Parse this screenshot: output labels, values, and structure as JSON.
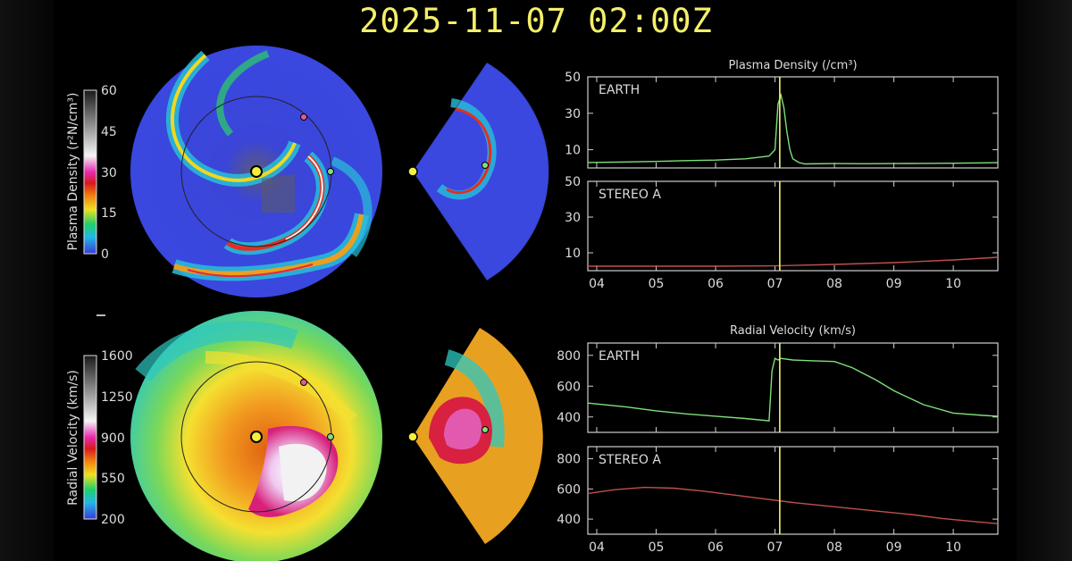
{
  "title": "2025-11-07  02:00Z",
  "colors": {
    "earth_line": "#7fe07a",
    "stereo_line": "#c0504d",
    "marker": "#f4ef6a",
    "frame": "#cfcfcf"
  },
  "colorbars": [
    {
      "label": "Plasma Density (r²N/cm³)",
      "ticks": [
        "60",
        "45",
        "30",
        "15",
        "0"
      ]
    },
    {
      "label": "Radial Velocity (km/s)",
      "ticks": [
        "1600",
        "1250",
        "900",
        "550",
        "200"
      ]
    }
  ],
  "chart_data": [
    {
      "type": "line",
      "title": "Plasma Density (/cm³)",
      "x_ticks": [
        "04",
        "05",
        "06",
        "07",
        "08",
        "09",
        "10"
      ],
      "xlim": [
        3.85,
        10.75
      ],
      "marker_x": 7.08,
      "panels": [
        {
          "label": "EARTH",
          "ylim": [
            0,
            50
          ],
          "y_ticks": [
            10,
            30,
            50
          ],
          "series": [
            {
              "color": "#7fe07a",
              "x": [
                3.85,
                4.5,
                5.0,
                5.5,
                6.0,
                6.5,
                6.9,
                7.0,
                7.05,
                7.1,
                7.15,
                7.2,
                7.25,
                7.3,
                7.4,
                7.5,
                8.0,
                8.5,
                9.0,
                9.5,
                10.0,
                10.5,
                10.75
              ],
              "y": [
                3,
                3.3,
                3.6,
                4,
                4.3,
                5,
                6.5,
                10,
                35,
                40,
                33,
                20,
                10,
                5,
                3,
                2.2,
                2.4,
                2.3,
                2.4,
                2.5,
                2.6,
                2.8,
                2.9
              ]
            }
          ]
        },
        {
          "label": "STEREO A",
          "ylim": [
            0,
            50
          ],
          "y_ticks": [
            10,
            30,
            50
          ],
          "series": [
            {
              "color": "#c0504d",
              "x": [
                3.85,
                5.0,
                6.0,
                7.0,
                8.0,
                9.0,
                10.0,
                10.75
              ],
              "y": [
                2.5,
                2.5,
                2.5,
                2.7,
                3.5,
                4.5,
                6,
                7.5
              ]
            }
          ]
        }
      ]
    },
    {
      "type": "line",
      "title": "Radial Velocity (km/s)",
      "x_ticks": [
        "04",
        "05",
        "06",
        "07",
        "08",
        "09",
        "10"
      ],
      "xlim": [
        3.85,
        10.75
      ],
      "marker_x": 7.08,
      "panels": [
        {
          "label": "EARTH",
          "ylim": [
            300,
            880
          ],
          "y_ticks": [
            400,
            600,
            800
          ],
          "series": [
            {
              "color": "#7fe07a",
              "x": [
                3.85,
                4.5,
                5.0,
                5.5,
                6.0,
                6.5,
                6.9,
                6.95,
                7.0,
                7.05,
                7.1,
                7.3,
                7.6,
                8.0,
                8.3,
                8.7,
                9.0,
                9.5,
                10.0,
                10.5,
                10.75
              ],
              "y": [
                490,
                465,
                440,
                420,
                405,
                390,
                375,
                700,
                780,
                770,
                780,
                770,
                765,
                760,
                720,
                640,
                570,
                480,
                425,
                410,
                405
              ]
            }
          ]
        },
        {
          "label": "STEREO A",
          "ylim": [
            300,
            880
          ],
          "y_ticks": [
            400,
            600,
            800
          ],
          "series": [
            {
              "color": "#c0504d",
              "x": [
                3.85,
                4.3,
                4.8,
                5.3,
                5.8,
                6.3,
                6.8,
                7.3,
                7.8,
                8.3,
                8.8,
                9.3,
                9.8,
                10.3,
                10.75
              ],
              "y": [
                570,
                595,
                610,
                605,
                585,
                560,
                535,
                510,
                490,
                470,
                450,
                430,
                405,
                385,
                370
              ]
            }
          ]
        }
      ]
    }
  ]
}
